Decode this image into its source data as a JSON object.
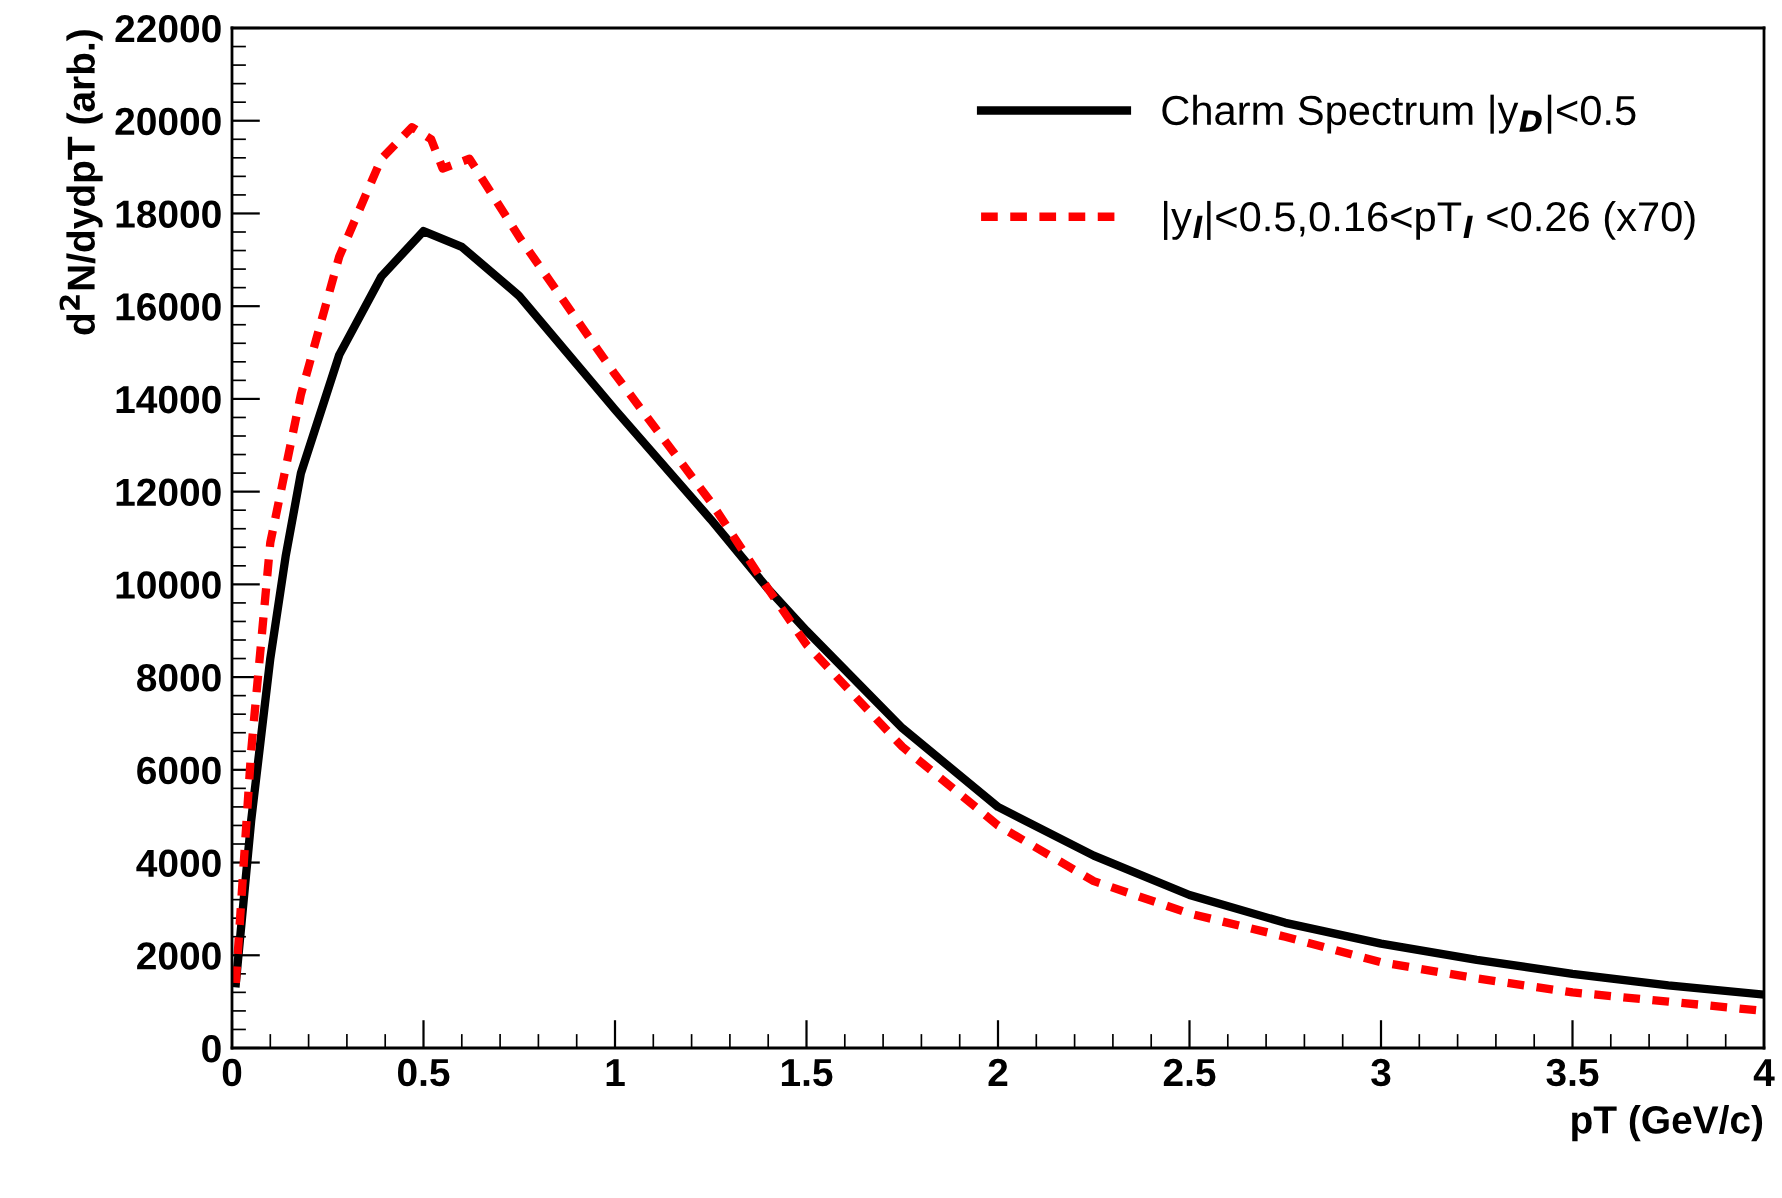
{
  "chart_data": {
    "type": "line",
    "xlabel": "pT (GeV/c)",
    "ylabel": "d$^{2}$N/dydpT (arb.)",
    "xlim": [
      0,
      4
    ],
    "ylim": [
      0,
      22000
    ],
    "xticks": [
      0,
      0.5,
      1,
      1.5,
      2,
      2.5,
      3,
      3.5,
      4
    ],
    "yticks": [
      0,
      2000,
      4000,
      6000,
      8000,
      10000,
      12000,
      14000,
      16000,
      18000,
      20000,
      22000
    ],
    "legend": "top right",
    "grid": false,
    "series": [
      {
        "name": "Charm Spectrum |y$_{D}$|<0.5",
        "color": "#000000",
        "line_style": "solid",
        "x": [
          0.01,
          0.05,
          0.1,
          0.14,
          0.18,
          0.28,
          0.39,
          0.5,
          0.6,
          0.75,
          1,
          1.25,
          1.4,
          1.5,
          1.75,
          2,
          2.25,
          2.5,
          2.75,
          3,
          3.25,
          3.5,
          3.75,
          4
        ],
        "values": [
          1400,
          4900,
          8400,
          10600,
          12400,
          14950,
          16640,
          17620,
          17280,
          16220,
          13770,
          11400,
          9900,
          9000,
          6900,
          5200,
          4150,
          3300,
          2700,
          2250,
          1900,
          1600,
          1350,
          1150
        ]
      },
      {
        "name": "|y$_{l}$|<0.5,0.16<pT$_{l}$ <0.26 (x70)",
        "color": "#ff0000",
        "line_style": "dotted",
        "x": [
          0.01,
          0.05,
          0.1,
          0.18,
          0.28,
          0.39,
          0.47,
          0.52,
          0.55,
          0.62,
          0.75,
          1,
          1.25,
          1.4,
          1.5,
          1.75,
          2,
          2.25,
          2.5,
          2.75,
          3,
          3.25,
          3.5,
          3.75,
          4
        ],
        "values": [
          1400,
          6400,
          10900,
          14100,
          17070,
          19180,
          19860,
          19600,
          18970,
          19180,
          17490,
          14530,
          11780,
          9900,
          8700,
          6500,
          4800,
          3600,
          2900,
          2400,
          1850,
          1500,
          1200,
          1000,
          800
        ]
      }
    ]
  }
}
